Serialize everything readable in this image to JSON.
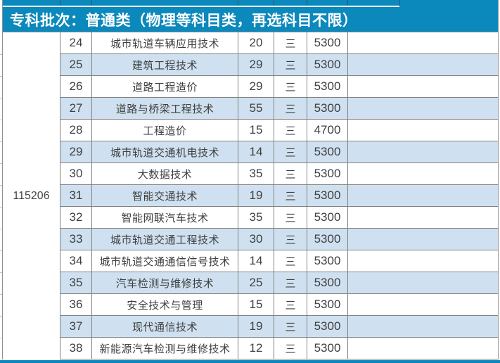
{
  "banner": {
    "label": "专科批次：普通类（物理等科目类，再选科目不限）"
  },
  "college": {
    "group_code": "115206"
  },
  "table": {
    "rows": [
      {
        "seq": "24",
        "major": "城市轨道车辆应用技术",
        "plan": "20",
        "years": "三",
        "fee": "5300",
        "remark": ""
      },
      {
        "seq": "25",
        "major": "建筑工程技术",
        "plan": "29",
        "years": "三",
        "fee": "5300",
        "remark": ""
      },
      {
        "seq": "26",
        "major": "道路工程造价",
        "plan": "29",
        "years": "三",
        "fee": "5300",
        "remark": ""
      },
      {
        "seq": "27",
        "major": "道路与桥梁工程技术",
        "plan": "55",
        "years": "三",
        "fee": "5300",
        "remark": ""
      },
      {
        "seq": "28",
        "major": "工程造价",
        "plan": "15",
        "years": "三",
        "fee": "4700",
        "remark": ""
      },
      {
        "seq": "29",
        "major": "城市轨道交通机电技术",
        "plan": "14",
        "years": "三",
        "fee": "5300",
        "remark": ""
      },
      {
        "seq": "30",
        "major": "大数据技术",
        "plan": "35",
        "years": "三",
        "fee": "5300",
        "remark": ""
      },
      {
        "seq": "31",
        "major": "智能交通技术",
        "plan": "19",
        "years": "三",
        "fee": "5300",
        "remark": ""
      },
      {
        "seq": "32",
        "major": "智能网联汽车技术",
        "plan": "35",
        "years": "三",
        "fee": "5300",
        "remark": ""
      },
      {
        "seq": "33",
        "major": "城市轨道交通工程技术",
        "plan": "30",
        "years": "三",
        "fee": "5300",
        "remark": ""
      },
      {
        "seq": "34",
        "major": "城市轨道交通通信信号技术",
        "plan": "14",
        "years": "三",
        "fee": "5300",
        "remark": ""
      },
      {
        "seq": "35",
        "major": "汽车检测与维修技术",
        "plan": "25",
        "years": "三",
        "fee": "5300",
        "remark": ""
      },
      {
        "seq": "36",
        "major": "安全技术与管理",
        "plan": "15",
        "years": "三",
        "fee": "5300",
        "remark": ""
      },
      {
        "seq": "37",
        "major": "现代通信技术",
        "plan": "19",
        "years": "三",
        "fee": "5300",
        "remark": ""
      },
      {
        "seq": "38",
        "major": "新能源汽车检测与维修技术",
        "plan": "12",
        "years": "三",
        "fee": "5300",
        "remark": ""
      }
    ]
  },
  "colors": {
    "banner_bg": "#0b88bc",
    "banner_fg": "#ffffff",
    "row_alt_bg": "#cfe1f0",
    "grid": "#828282",
    "text": "#3f3f3f",
    "bottom_bar": "#0b88bc"
  }
}
